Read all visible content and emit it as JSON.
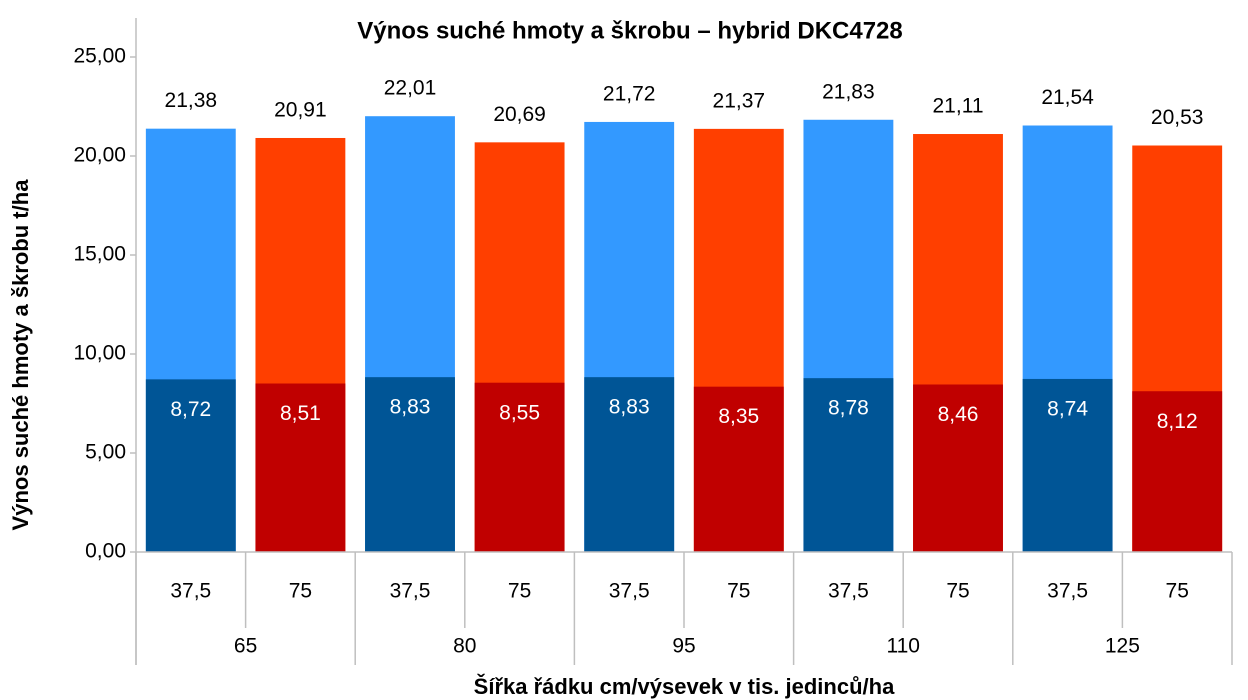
{
  "chart_data": {
    "type": "bar",
    "title": "Výnos suché hmoty a škrobu – hybrid DKC4728",
    "y_label": "Výnos suché hmoty a škrobu t/ha",
    "x_label": "Šířka řádku cm/výsevek v tis. jedinců/ha",
    "categories": [
      "37,5",
      "75",
      "37,5",
      "75",
      "37,5",
      "75",
      "37,5",
      "75",
      "37,5",
      "75"
    ],
    "group_labels": [
      "65",
      "80",
      "95",
      "110",
      "125"
    ],
    "series": [
      {
        "colors": [
          "#3399ff",
          "#ff3f00"
        ],
        "values": [
          21.38,
          20.91,
          22.01,
          20.69,
          21.72,
          21.37,
          21.83,
          21.11,
          21.54,
          20.53
        ],
        "value_labels": [
          "21,38",
          "20,91",
          "22,01",
          "20,69",
          "21,72",
          "21,37",
          "21,83",
          "21,11",
          "21,54",
          "20,53"
        ]
      },
      {
        "colors": [
          "#005596",
          "#c00000"
        ],
        "values": [
          8.72,
          8.51,
          8.83,
          8.55,
          8.83,
          8.35,
          8.78,
          8.46,
          8.74,
          8.12
        ],
        "value_labels": [
          "8,72",
          "8,51",
          "8,83",
          "8,55",
          "8,83",
          "8,35",
          "8,78",
          "8,46",
          "8,74",
          "8,12"
        ]
      }
    ],
    "ylim": [
      0,
      25
    ],
    "yticks": [
      {
        "value": 0,
        "label": "0,00"
      },
      {
        "value": 5,
        "label": "5,00"
      },
      {
        "value": 10,
        "label": "10,00"
      },
      {
        "value": 15,
        "label": "15,00"
      },
      {
        "value": 20,
        "label": "20,00"
      },
      {
        "value": 25,
        "label": "25,00"
      }
    ]
  }
}
